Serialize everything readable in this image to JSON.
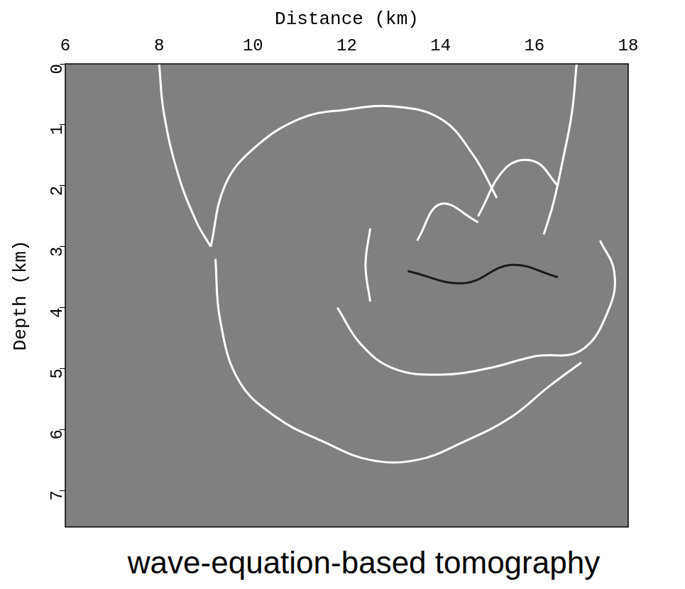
{
  "chart_data": {
    "type": "image",
    "title": "wave-equation-based tomography",
    "x_label": "Distance (km)",
    "y_label": "Depth (km)",
    "xlim": [
      6,
      18
    ],
    "xticks": [
      6,
      8,
      10,
      12,
      14,
      16,
      18
    ],
    "ylim": [
      0,
      7.6
    ],
    "yticks": [
      0,
      1,
      2,
      3,
      4,
      5,
      6,
      7
    ],
    "grid": false,
    "series": [
      {
        "color": "#ffffff",
        "x": [
          8.0,
          8.1,
          8.4,
          8.8,
          9.1
        ],
        "values": [
          0,
          0.8,
          1.8,
          2.6,
          3.0
        ]
      },
      {
        "color": "#ffffff",
        "x": [
          16.9,
          16.8,
          16.6,
          16.4,
          16.2
        ],
        "values": [
          0,
          0.8,
          1.6,
          2.3,
          2.8
        ]
      },
      {
        "color": "#ffffff",
        "x": [
          9.1,
          9.4,
          10.0,
          11.0,
          12.0,
          13.0,
          14.0,
          14.7,
          15.2
        ],
        "values": [
          3.0,
          2.0,
          1.4,
          0.9,
          0.75,
          0.7,
          0.9,
          1.5,
          2.2
        ]
      },
      {
        "color": "#ffffff",
        "x": [
          9.2,
          9.3,
          9.7,
          10.5,
          11.5,
          12.5,
          13.5,
          14.5,
          15.5,
          16.3,
          17.0
        ],
        "values": [
          3.2,
          4.2,
          5.2,
          5.8,
          6.2,
          6.5,
          6.5,
          6.2,
          5.8,
          5.3,
          4.9
        ]
      },
      {
        "color": "#ffffff",
        "x": [
          11.8,
          12.3,
          13.0,
          14.0,
          15.0,
          16.0,
          17.0,
          17.6,
          17.7,
          17.4
        ],
        "values": [
          4.0,
          4.6,
          5.0,
          5.1,
          5.0,
          4.8,
          4.7,
          4.0,
          3.4,
          2.9
        ]
      },
      {
        "color": "#ffffff",
        "x": [
          12.5,
          12.4,
          12.5
        ],
        "values": [
          2.7,
          3.3,
          3.9
        ]
      },
      {
        "color": "#ffffff",
        "x": [
          13.5,
          14.0,
          14.8
        ],
        "values": [
          2.9,
          2.3,
          2.6
        ]
      },
      {
        "color": "#ffffff",
        "x": [
          14.8,
          15.4,
          16.0,
          16.5
        ],
        "values": [
          2.5,
          1.7,
          1.6,
          2.0
        ]
      },
      {
        "color": "#1a1a1a",
        "x": [
          13.3,
          14.5,
          15.5,
          16.5
        ],
        "values": [
          3.4,
          3.6,
          3.3,
          3.5
        ]
      }
    ]
  }
}
